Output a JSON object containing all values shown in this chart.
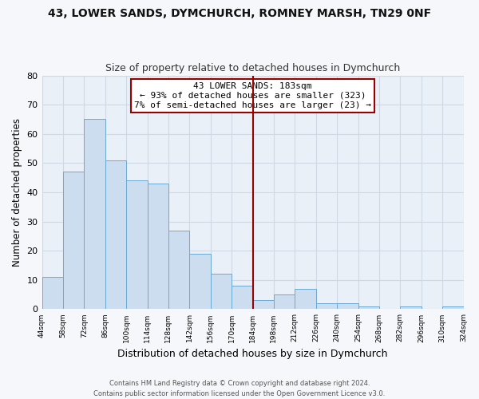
{
  "title": "43, LOWER SANDS, DYMCHURCH, ROMNEY MARSH, TN29 0NF",
  "subtitle": "Size of property relative to detached houses in Dymchurch",
  "xlabel": "Distribution of detached houses by size in Dymchurch",
  "ylabel": "Number of detached properties",
  "bar_color": "#ccddf0",
  "bar_edge_color": "#6aaad4",
  "background_color": "#eaf0f8",
  "grid_color": "#d0d8e4",
  "vline_color": "#990000",
  "bin_edges": [
    44,
    58,
    72,
    86,
    100,
    114,
    128,
    142,
    156,
    170,
    184,
    198,
    212,
    226,
    240,
    254,
    268,
    282,
    296,
    310,
    324
  ],
  "bar_heights": [
    11,
    47,
    65,
    51,
    44,
    43,
    27,
    19,
    12,
    8,
    3,
    5,
    7,
    2,
    2,
    1,
    0,
    1,
    0,
    1
  ],
  "ylim": [
    0,
    80
  ],
  "yticks": [
    0,
    10,
    20,
    30,
    40,
    50,
    60,
    70,
    80
  ],
  "vline_x": 184,
  "annotation_title": "43 LOWER SANDS: 183sqm",
  "annotation_line1": "← 93% of detached houses are smaller (323)",
  "annotation_line2": "7% of semi-detached houses are larger (23) →",
  "annotation_box_facecolor": "#ffffff",
  "annotation_box_edgecolor": "#990000",
  "footer_line1": "Contains HM Land Registry data © Crown copyright and database right 2024.",
  "footer_line2": "Contains public sector information licensed under the Open Government Licence v3.0.",
  "fig_facecolor": "#f5f7fa",
  "title_fontsize": 10,
  "subtitle_fontsize": 9,
  "ylabel_fontsize": 8.5,
  "xlabel_fontsize": 9,
  "ytick_fontsize": 8,
  "xtick_fontsize": 6.5,
  "annot_fontsize": 8,
  "footer_fontsize": 6
}
